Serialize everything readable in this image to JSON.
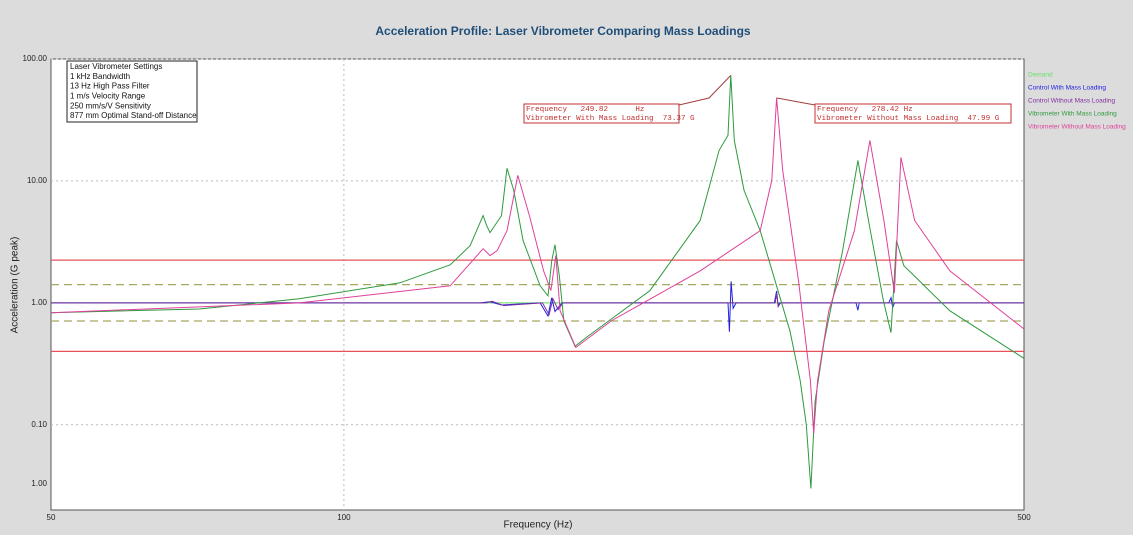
{
  "chart_data": {
    "type": "line",
    "title": "Acceleration Profile:  Laser Vibrometer Comparing Mass Loadings",
    "x_label": "Frequency (Hz)",
    "y_label": "Acceleration (G peak)",
    "log_x": true,
    "log_y": true,
    "grid": true,
    "legend": "right",
    "xlim": [
      50,
      500
    ],
    "xticks": [
      50,
      100,
      500
    ],
    "ylim": [
      0.02,
      100
    ],
    "yticks": [
      {
        "value": 100,
        "label": "100.00"
      },
      {
        "value": 10,
        "label": "10.00"
      },
      {
        "value": 1,
        "label": "1.00"
      },
      {
        "value": 0.1,
        "label": "0.10"
      }
    ],
    "stray_y_label": "1.00",
    "settings_box": [
      "Laser Vibrometer Settings",
      "1 kHz Bandwidth",
      "13 Hz High Pass Filter",
      "1 m/s Velocity Range",
      "250 mm/s/V Sensitivity",
      "877 mm Optimal Stand-off Distance"
    ],
    "callouts": [
      {
        "lines": [
          "Frequency   249.82      Hz",
          "Vibrometer With Mass Loading  73.37 G"
        ],
        "series": 3
      },
      {
        "lines": [
          "Frequency   278.42 Hz",
          "Vibrometer Without Mass Loading  47.99 G"
        ],
        "series": 4
      }
    ],
    "reference_lines": [
      {
        "value": 2.24,
        "color": "#e8505a",
        "dashed": false
      },
      {
        "value": 0.4,
        "color": "#e8505a",
        "dashed": false
      },
      {
        "value": 1.41,
        "color": "#a8a860",
        "dashed": true
      },
      {
        "value": 0.71,
        "color": "#a8a860",
        "dashed": true
      }
    ],
    "series": [
      {
        "name": "Demand",
        "color": "#66e066",
        "x": [
          50,
          500
        ],
        "values": [
          1,
          1
        ]
      },
      {
        "name": "Control With Mass Loading",
        "color": "#2020e0",
        "x": [
          50,
          138,
          141.3,
          145.2,
          159.1,
          162.1,
          163.5,
          164.8,
          167.5,
          248.2,
          249.0,
          250,
          251.2,
          253,
          277,
          278.4,
          279.4,
          280.5,
          336,
          337.5,
          338.5,
          363,
          365,
          366.5,
          368,
          500
        ],
        "values": [
          1,
          1,
          1.02,
          0.96,
          1,
          0.78,
          1.1,
          0.85,
          1,
          1,
          0.58,
          1.5,
          0.9,
          1,
          1,
          1.25,
          0.95,
          1,
          1,
          0.87,
          1,
          1,
          1.1,
          0.92,
          1,
          1
        ]
      },
      {
        "name": "Control Without Mass Loading",
        "color": "#8030a0",
        "x": [
          50,
          140,
          142,
          146,
          160,
          162.5,
          164,
          166,
          168,
          277.5,
          278.5,
          279.5,
          281,
          500
        ],
        "values": [
          1,
          1,
          1.03,
          0.95,
          1,
          0.8,
          1.08,
          0.88,
          1,
          1,
          1.2,
          0.93,
          1,
          1
        ]
      },
      {
        "name": "Vibrometer With Mass Loading",
        "color": "#2e9a3e",
        "x": [
          50,
          71.0,
          90,
          114.2,
          128.6,
          134.8,
          139.0,
          140.2,
          141.3,
          145.2,
          147.1,
          149.5,
          152.8,
          159.1,
          162.1,
          163.5,
          164.8,
          166.5,
          168.3,
          172.8,
          178,
          206.3,
          232.3,
          243,
          248.2,
          249.82,
          251.9,
          257.8,
          267.8,
          287.3,
          294.4,
          298.7,
          302,
          305,
          311.7,
          325.5,
          337.5,
          346.8,
          358.5,
          365,
          369.8,
          376.2,
          419.6,
          500
        ],
        "values": [
          0.83,
          0.89,
          1.08,
          1.46,
          2.05,
          2.94,
          5.2,
          4.3,
          3.77,
          5.2,
          12.7,
          8.35,
          3.24,
          1.38,
          1.14,
          2.2,
          3.0,
          1.67,
          0.71,
          0.44,
          0.53,
          1.26,
          4.73,
          17.8,
          23.7,
          73.37,
          21.5,
          8.35,
          3.91,
          0.59,
          0.23,
          0.1,
          0.03,
          0.156,
          0.49,
          2.68,
          14.7,
          4.3,
          1.04,
          0.57,
          3.24,
          2.02,
          0.86,
          0.35
        ]
      },
      {
        "name": "Vibrometer Without Mass Loading",
        "color": "#e0409a",
        "x": [
          50,
          90,
          128.6,
          139.0,
          141.3,
          143.7,
          147.1,
          150.9,
          155.1,
          160.4,
          163.2,
          165.1,
          166.8,
          173.1,
          188.2,
          232.3,
          267.8,
          275.3,
          278.42,
          282.5,
          293.2,
          301.6,
          304,
          306.8,
          315,
          334.7,
          347.2,
          358.9,
          367.9,
          373.6,
          386,
          419.6,
          500
        ],
        "values": [
          0.83,
          1.0,
          1.38,
          2.78,
          2.44,
          2.68,
          3.91,
          11.1,
          5.2,
          1.83,
          1.26,
          2.44,
          0.86,
          0.43,
          0.71,
          1.83,
          3.91,
          10.1,
          47.99,
          12.2,
          1.52,
          0.23,
          0.085,
          0.23,
          0.86,
          3.91,
          21.5,
          4.73,
          1.21,
          15.6,
          4.73,
          1.83,
          0.61
        ]
      }
    ]
  }
}
